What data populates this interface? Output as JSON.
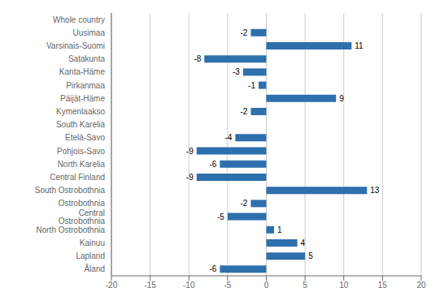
{
  "chart_data": {
    "type": "bar",
    "orientation": "horizontal",
    "categories": [
      "Whole country",
      "Uusimaa",
      "Varsinais-Suomi",
      "Satakunta",
      "Kanta-Häme",
      "Pirkanmaa",
      "Päijät-Häme",
      "Kymenlaakso",
      "South Karelia",
      "Etelä-Savo",
      "Pohjois-Savo",
      "North Karelia",
      "Central Finland",
      "South Ostrobothnia",
      "Ostrobothnia",
      "Central Ostrobothnia",
      "North Ostrobothnia",
      "Kainuu",
      "Lapland",
      "Åland"
    ],
    "values": [
      0,
      -2,
      11,
      -8,
      -3,
      -1,
      9,
      -2,
      0,
      -4,
      -9,
      -6,
      -9,
      13,
      -2,
      -5,
      1,
      4,
      5,
      -6
    ],
    "color": "#2e6fad",
    "xlim": [
      -20,
      20
    ],
    "xticks": [
      -20,
      -15,
      -10,
      -5,
      0,
      5,
      10,
      15,
      20
    ],
    "grid": true,
    "data_labels": true
  }
}
